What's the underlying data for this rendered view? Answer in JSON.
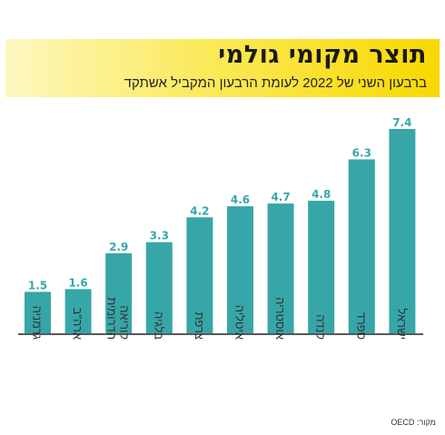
{
  "header": {
    "title": "תוצר מקומי גולמי",
    "subtitle": "ברבעון השני של 2022 לעומת הרבעון המקביל אשתקד"
  },
  "footer": {
    "source": "מקור: OECD"
  },
  "colors": {
    "bar": "#37a6a8",
    "label": "#37a6a8",
    "header_gradient": [
      "#fdf7c0",
      "#f8d800"
    ],
    "axis": "#222222",
    "category_text": "#333333"
  },
  "chart_data": {
    "type": "bar",
    "orientation": "vertical",
    "categories": [
      "גרמניה",
      "ארה\"ב",
      "קוריאה הדרומית",
      "בלגיה",
      "צרפת",
      "איטליה",
      "אוסטריה",
      "קנדה",
      "ספרד",
      "ישראל"
    ],
    "values": [
      1.5,
      1.6,
      2.9,
      3.3,
      4.2,
      4.6,
      4.7,
      4.8,
      6.3,
      7.4
    ],
    "value_labels": [
      "1.5",
      "1.6",
      "2.9",
      "3.3",
      "4.2",
      "4.6",
      "4.7",
      "4.8",
      "6.3",
      "7.4"
    ],
    "ylim": [
      0,
      7.4
    ],
    "grid": false,
    "category_label_rotation": "vertical"
  }
}
